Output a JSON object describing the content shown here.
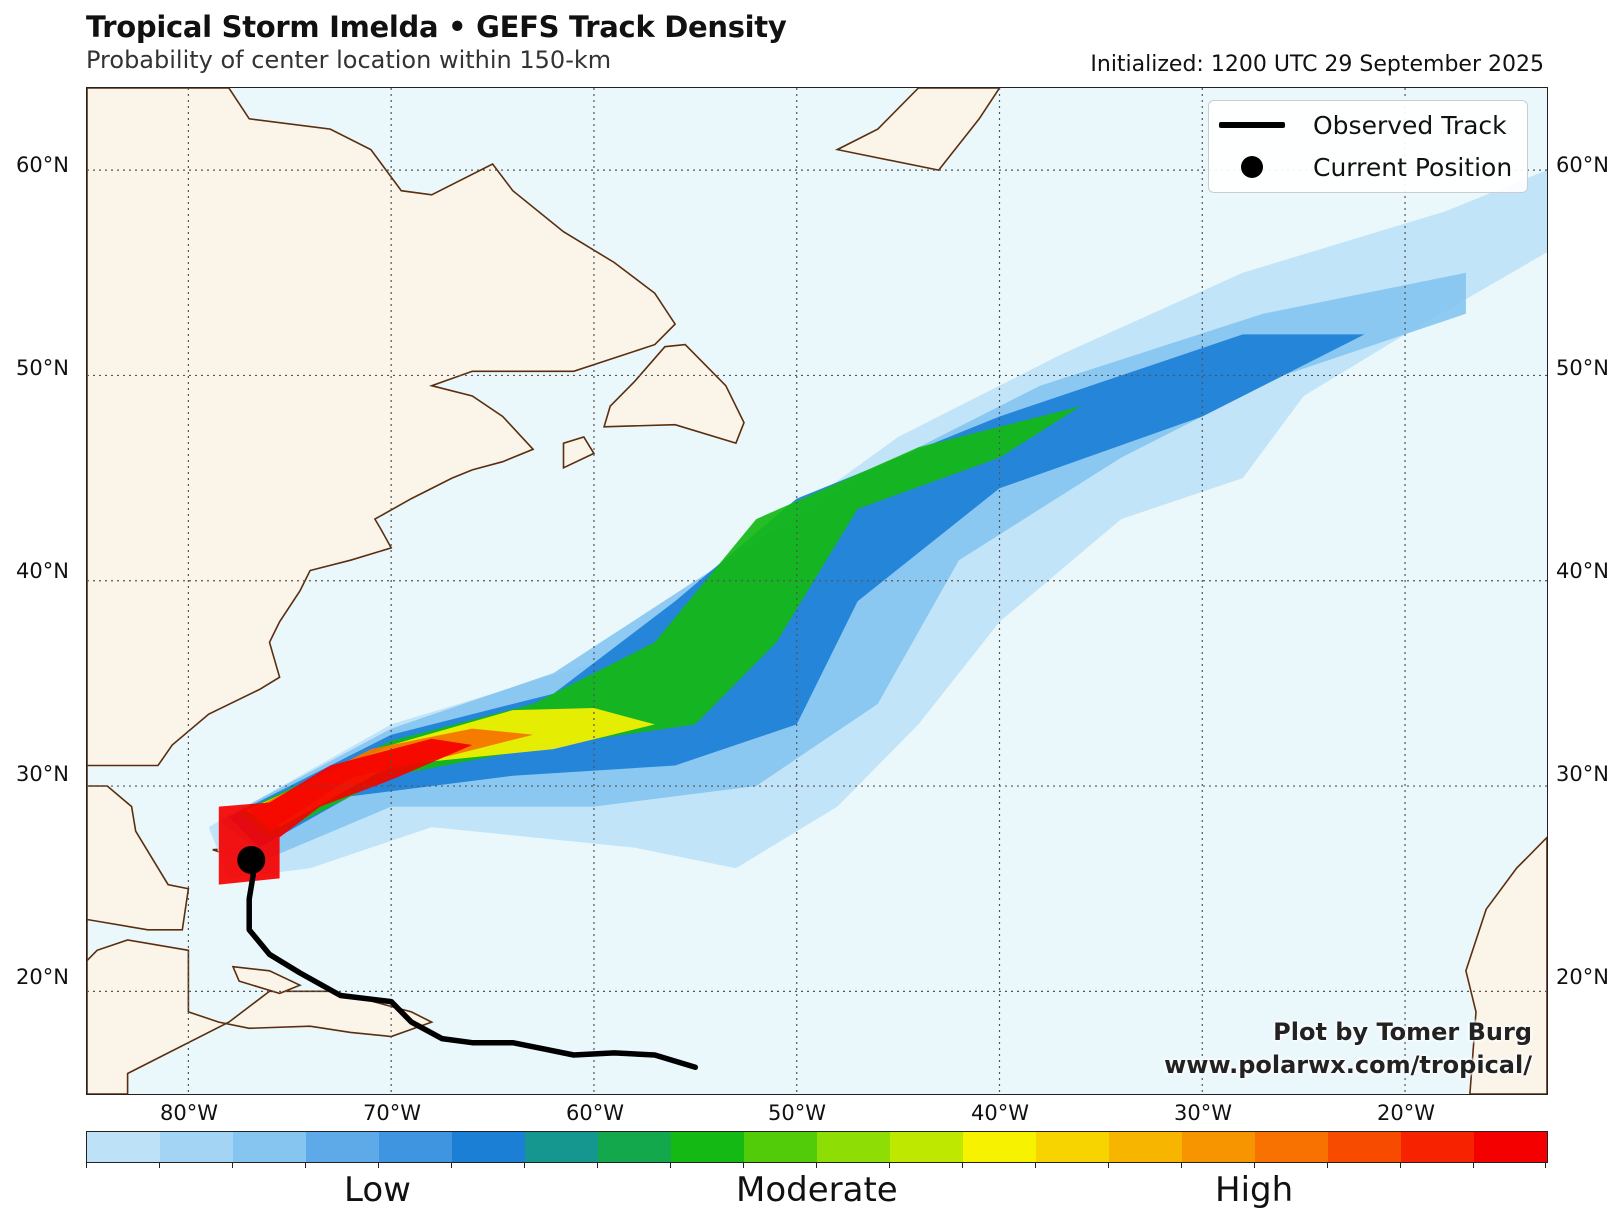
{
  "header": {
    "title": "Tropical Storm Imelda • GEFS Track Density",
    "subtitle": "Probability of center location within 150-km",
    "initialized": "Initialized: 1200 UTC 29 September 2025"
  },
  "map": {
    "lat_labels": [
      "60°N",
      "50°N",
      "40°N",
      "30°N",
      "20°N"
    ],
    "lon_labels": [
      "80°W",
      "70°W",
      "60°W",
      "50°W",
      "40°W",
      "30°W",
      "20°W"
    ],
    "lon_range": [
      -85,
      -13
    ],
    "lat_range": [
      15,
      64
    ],
    "colors": {
      "ocean": "#eaf8fc",
      "land": "#fbf4e8",
      "coast": "#5a2e0e",
      "grid": "#555555"
    }
  },
  "legend": {
    "observed_track": "Observed Track",
    "current_position": "Current Position"
  },
  "credit": {
    "line1": "Plot by Tomer Burg",
    "line2": "www.polarwx.com/tropical/"
  },
  "colorbar": {
    "labels": [
      "Low",
      "Moderate",
      "High"
    ],
    "colors": [
      "#bde2f7",
      "#a3d4f3",
      "#86c5f0",
      "#5ea9e8",
      "#3f95e0",
      "#1c7fd6",
      "#15978f",
      "#13a84c",
      "#14b914",
      "#52cc08",
      "#8ede05",
      "#bfe800",
      "#f6f200",
      "#f7d400",
      "#f8b500",
      "#f79500",
      "#f77200",
      "#f74b00",
      "#f72300",
      "#f50000"
    ]
  },
  "track": {
    "observed": [
      [
        -55,
        16.3
      ],
      [
        -57,
        16.9
      ],
      [
        -59,
        17.0
      ],
      [
        -61,
        16.9
      ],
      [
        -62.5,
        17.2
      ],
      [
        -64,
        17.5
      ],
      [
        -66,
        17.5
      ],
      [
        -67.5,
        17.7
      ],
      [
        -69,
        18.5
      ],
      [
        -70,
        19.5
      ],
      [
        -72.5,
        19.8
      ],
      [
        -74.5,
        20.9
      ],
      [
        -76,
        21.8
      ],
      [
        -77,
        23
      ],
      [
        -77,
        24.5
      ],
      [
        -76.8,
        25.7
      ],
      [
        -76.9,
        26.4
      ]
    ],
    "current": [
      -76.9,
      26.4
    ]
  },
  "density": [
    {
      "level": 0,
      "path": [
        [
          -79,
          28
        ],
        [
          -70,
          33
        ],
        [
          -60,
          36
        ],
        [
          -52,
          42
        ],
        [
          -45,
          47
        ],
        [
          -37,
          51
        ],
        [
          -28,
          55
        ],
        [
          -18,
          58
        ],
        [
          -13,
          60
        ],
        [
          -13,
          56
        ],
        [
          -20,
          52
        ],
        [
          -25,
          49
        ],
        [
          -28,
          45
        ],
        [
          -34,
          43
        ],
        [
          -40,
          38
        ],
        [
          -44,
          33
        ],
        [
          -48,
          29
        ],
        [
          -53,
          26
        ],
        [
          -58,
          27
        ],
        [
          -68,
          28
        ],
        [
          -74,
          26
        ],
        [
          -78,
          25.5
        ]
      ]
    },
    {
      "level": 2,
      "path": [
        [
          -78.5,
          28.3
        ],
        [
          -70,
          32.8
        ],
        [
          -62,
          35.5
        ],
        [
          -55,
          40
        ],
        [
          -47,
          45
        ],
        [
          -38,
          49.5
        ],
        [
          -27,
          53
        ],
        [
          -17,
          55
        ],
        [
          -17,
          53
        ],
        [
          -26,
          50
        ],
        [
          -34,
          46
        ],
        [
          -42,
          41
        ],
        [
          -46,
          34
        ],
        [
          -52,
          30
        ],
        [
          -60,
          29
        ],
        [
          -70,
          29
        ],
        [
          -76,
          26.5
        ]
      ]
    },
    {
      "level": 5,
      "path": [
        [
          -78,
          28.5
        ],
        [
          -70,
          32.5
        ],
        [
          -62,
          34.5
        ],
        [
          -56,
          39
        ],
        [
          -50,
          44
        ],
        [
          -40,
          48
        ],
        [
          -28,
          52
        ],
        [
          -22,
          52
        ],
        [
          -30,
          48
        ],
        [
          -40,
          44.5
        ],
        [
          -47,
          39
        ],
        [
          -50,
          33
        ],
        [
          -56,
          31
        ],
        [
          -64,
          30.5
        ],
        [
          -72,
          29.5
        ],
        [
          -76.5,
          27
        ]
      ]
    },
    {
      "level": 8,
      "path": [
        [
          -77.5,
          28.7
        ],
        [
          -70,
          32.2
        ],
        [
          -63,
          34
        ],
        [
          -57,
          37
        ],
        [
          -52,
          43
        ],
        [
          -44,
          46.5
        ],
        [
          -36,
          48.5
        ],
        [
          -40,
          46
        ],
        [
          -47,
          43.5
        ],
        [
          -51,
          37
        ],
        [
          -55,
          33
        ],
        [
          -62,
          32
        ],
        [
          -70,
          30.5
        ],
        [
          -76,
          27.5
        ]
      ]
    },
    {
      "level": 12,
      "path": [
        [
          -77.2,
          28.8
        ],
        [
          -70,
          32
        ],
        [
          -64,
          33.7
        ],
        [
          -60,
          33.8
        ],
        [
          -57,
          33
        ],
        [
          -62,
          31.8
        ],
        [
          -70,
          31
        ],
        [
          -75.5,
          28
        ]
      ]
    },
    {
      "level": 16,
      "path": [
        [
          -77,
          28.8
        ],
        [
          -71,
          31.8
        ],
        [
          -66,
          32.8
        ],
        [
          -63,
          32.5
        ],
        [
          -67,
          31.5
        ],
        [
          -72,
          30.4
        ],
        [
          -76,
          27.8
        ]
      ]
    },
    {
      "level": 19,
      "path": [
        [
          -78.5,
          29
        ],
        [
          -76,
          29.2
        ],
        [
          -73,
          31
        ],
        [
          -68,
          32.3
        ],
        [
          -66,
          32
        ],
        [
          -70,
          30.3
        ],
        [
          -73.5,
          29
        ],
        [
          -75.5,
          27.5
        ],
        [
          -75.5,
          25.5
        ],
        [
          -78.5,
          25.2
        ]
      ]
    }
  ]
}
